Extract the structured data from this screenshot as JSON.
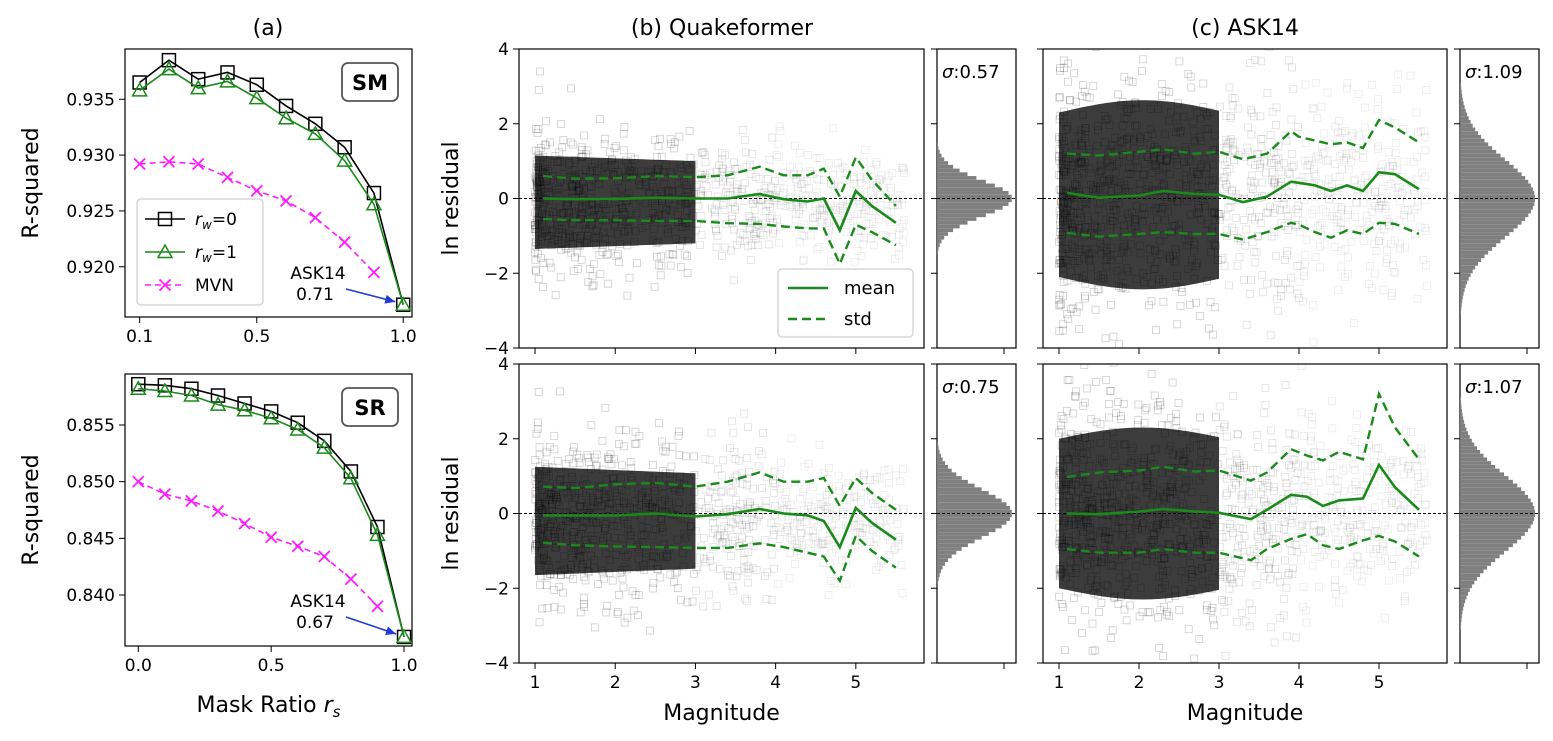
{
  "panel_titles": {
    "a": "(a)",
    "b": "(b) Quakeformer",
    "c": "(c) ASK14"
  },
  "colors": {
    "black_series": "#000000",
    "green_series": "#1a8a1a",
    "magenta_series": "#ff1aff",
    "residual_cloud": "#3c3c3c",
    "hist_fill": "#7f7f7f",
    "arrow": "#1f3bd6"
  },
  "chart_data": [
    {
      "id": "sm_r2",
      "type": "line",
      "badge": "SM",
      "ylabel": "R-squared",
      "xlabel": "",
      "xlim": [
        0.05,
        1.03
      ],
      "ylim": [
        0.9155,
        0.9395
      ],
      "xticks": [
        0.1,
        0.5,
        1.0
      ],
      "xtick_labels": [
        "0.1",
        "0.5",
        "1.0"
      ],
      "yticks": [
        0.92,
        0.925,
        0.93,
        0.935
      ],
      "ytick_labels": [
        "0.920",
        "0.925",
        "0.930",
        "0.935"
      ],
      "annotation": {
        "text": [
          "ASK14",
          "0.71"
        ],
        "x": 1.0,
        "y": 0.9166
      },
      "series": [
        {
          "name": "r_w=0",
          "label_sym": "r",
          "label_sub": "w",
          "label_tail": "=0",
          "marker": "square",
          "style": "solid",
          "x": [
            0.1,
            0.2,
            0.3,
            0.4,
            0.5,
            0.6,
            0.7,
            0.8,
            0.9,
            1.0
          ],
          "values": [
            0.9365,
            0.9385,
            0.9368,
            0.9374,
            0.9363,
            0.9344,
            0.9328,
            0.9307,
            0.9266,
            0.9166
          ]
        },
        {
          "name": "r_w=1",
          "label_sym": "r",
          "label_sub": "w",
          "label_tail": "=1",
          "marker": "triangle",
          "style": "solid",
          "x": [
            0.1,
            0.2,
            0.3,
            0.4,
            0.5,
            0.6,
            0.7,
            0.8,
            0.9,
            1.0
          ],
          "values": [
            0.9358,
            0.9377,
            0.936,
            0.9366,
            0.9351,
            0.9333,
            0.9319,
            0.9295,
            0.9256,
            0.9166
          ]
        },
        {
          "name": "MVN",
          "label_sym": "MVN",
          "label_sub": "",
          "label_tail": "",
          "marker": "x",
          "style": "dashed",
          "x": [
            0.1,
            0.2,
            0.3,
            0.4,
            0.5,
            0.6,
            0.7,
            0.8,
            0.9
          ],
          "values": [
            0.9292,
            0.9294,
            0.9292,
            0.928,
            0.9268,
            0.9259,
            0.9244,
            0.9222,
            0.9195
          ]
        }
      ]
    },
    {
      "id": "sr_r2",
      "type": "line",
      "badge": "SR",
      "ylabel": "R-squared",
      "xlabel": "Mask Ratio",
      "xlabel_sym": "r",
      "xlabel_sub": "s",
      "xlim": [
        -0.05,
        1.03
      ],
      "ylim": [
        0.8355,
        0.8595
      ],
      "xticks": [
        0.0,
        0.5,
        1.0
      ],
      "xtick_labels": [
        "0.0",
        "0.5",
        "1.0"
      ],
      "yticks": [
        0.84,
        0.845,
        0.85,
        0.855
      ],
      "ytick_labels": [
        "0.840",
        "0.845",
        "0.850",
        "0.855"
      ],
      "annotation": {
        "text": [
          "ASK14",
          "0.67"
        ],
        "x": 1.0,
        "y": 0.8363
      },
      "series": [
        {
          "name": "r_w=0",
          "marker": "square",
          "style": "solid",
          "x": [
            0.0,
            0.1,
            0.2,
            0.3,
            0.4,
            0.5,
            0.6,
            0.7,
            0.8,
            0.9,
            1.0
          ],
          "values": [
            0.8586,
            0.8585,
            0.8582,
            0.8576,
            0.8569,
            0.8562,
            0.8552,
            0.8536,
            0.8509,
            0.846,
            0.8363
          ]
        },
        {
          "name": "r_w=1",
          "marker": "triangle",
          "style": "solid",
          "x": [
            0.0,
            0.1,
            0.2,
            0.3,
            0.4,
            0.5,
            0.6,
            0.7,
            0.8,
            0.9,
            1.0
          ],
          "values": [
            0.8582,
            0.858,
            0.8576,
            0.8568,
            0.8563,
            0.8556,
            0.8546,
            0.853,
            0.8503,
            0.8453,
            0.8363
          ]
        },
        {
          "name": "MVN",
          "marker": "x",
          "style": "dashed",
          "x": [
            0.0,
            0.1,
            0.2,
            0.3,
            0.4,
            0.5,
            0.6,
            0.7,
            0.8,
            0.9
          ],
          "values": [
            0.85,
            0.8489,
            0.8483,
            0.8474,
            0.8463,
            0.8451,
            0.8443,
            0.8434,
            0.8414,
            0.839
          ]
        }
      ]
    },
    {
      "id": "qf_sm",
      "type": "scatter",
      "ylabel": "ln residual",
      "xlabel": "",
      "xlim": [
        0.8,
        5.85
      ],
      "ylim": [
        -4,
        4
      ],
      "xticks": [
        1,
        2,
        3,
        4,
        5
      ],
      "xtick_labels": [],
      "yticks": [
        -4,
        -2,
        0,
        2,
        4
      ],
      "ytick_labels": [
        "−4",
        "−2",
        "0",
        "2",
        "4"
      ],
      "density_spread": 1.25,
      "mean": {
        "x": [
          1.1,
          1.5,
          2.0,
          2.5,
          3.0,
          3.4,
          3.8,
          4.1,
          4.4,
          4.6,
          4.8,
          5.0,
          5.2,
          5.5
        ],
        "values": [
          0.0,
          -0.02,
          -0.01,
          0.02,
          0.0,
          0.0,
          0.12,
          -0.02,
          -0.08,
          0.0,
          -0.85,
          0.2,
          -0.2,
          -0.65
        ]
      },
      "std_upper": {
        "x": [
          1.1,
          1.5,
          2.0,
          2.5,
          3.0,
          3.4,
          3.8,
          4.1,
          4.4,
          4.6,
          4.8,
          5.0,
          5.2,
          5.5
        ],
        "values": [
          0.6,
          0.53,
          0.54,
          0.6,
          0.57,
          0.62,
          0.85,
          0.62,
          0.62,
          0.8,
          0.05,
          1.1,
          0.5,
          -0.2
        ]
      },
      "std_lower": {
        "x": [
          1.1,
          1.5,
          2.0,
          2.5,
          3.0,
          3.4,
          3.8,
          4.1,
          4.4,
          4.6,
          4.8,
          5.0,
          5.2,
          5.5
        ],
        "values": [
          -0.55,
          -0.58,
          -0.58,
          -0.6,
          -0.6,
          -0.66,
          -0.68,
          -0.75,
          -0.8,
          -0.8,
          -1.75,
          -0.7,
          -0.9,
          -1.25
        ]
      },
      "legend": {
        "mean": "mean",
        "std": "std"
      },
      "sigma": "0.57"
    },
    {
      "id": "ask_sm",
      "type": "scatter",
      "ylabel": "",
      "xlabel": "",
      "xlim": [
        0.8,
        5.85
      ],
      "ylim": [
        -4,
        4
      ],
      "xticks": [
        1,
        2,
        3,
        4,
        5
      ],
      "xtick_labels": [],
      "yticks": [
        -4,
        -2,
        0,
        2,
        4
      ],
      "ytick_labels": [],
      "density_spread": 2.2,
      "mean": {
        "x": [
          1.1,
          1.5,
          2.0,
          2.3,
          2.7,
          3.0,
          3.3,
          3.6,
          3.9,
          4.0,
          4.2,
          4.4,
          4.6,
          4.8,
          5.0,
          5.2,
          5.5
        ],
        "values": [
          0.15,
          0.02,
          0.08,
          0.2,
          0.12,
          0.1,
          -0.1,
          0.05,
          0.45,
          0.42,
          0.35,
          0.2,
          0.35,
          0.2,
          0.7,
          0.65,
          0.25
        ]
      },
      "std_upper": {
        "x": [
          1.1,
          1.5,
          2.0,
          2.3,
          2.7,
          3.0,
          3.3,
          3.6,
          3.9,
          4.0,
          4.2,
          4.4,
          4.6,
          4.8,
          5.0,
          5.2,
          5.5
        ],
        "values": [
          1.2,
          1.15,
          1.25,
          1.32,
          1.2,
          1.25,
          1.05,
          1.2,
          1.8,
          1.65,
          1.55,
          1.45,
          1.5,
          1.35,
          2.1,
          1.9,
          1.5
        ]
      },
      "std_lower": {
        "x": [
          1.1,
          1.5,
          2.0,
          2.3,
          2.7,
          3.0,
          3.3,
          3.6,
          3.9,
          4.0,
          4.2,
          4.4,
          4.6,
          4.8,
          5.0,
          5.2,
          5.5
        ],
        "values": [
          -0.92,
          -1.02,
          -0.95,
          -0.9,
          -0.95,
          -0.95,
          -1.1,
          -0.9,
          -0.65,
          -0.7,
          -0.9,
          -1.05,
          -0.85,
          -0.95,
          -0.65,
          -0.68,
          -0.95
        ]
      },
      "sigma": "1.09"
    },
    {
      "id": "qf_sr",
      "type": "scatter",
      "ylabel": "ln residual",
      "xlabel": "Magnitude",
      "xlim": [
        0.8,
        5.85
      ],
      "ylim": [
        -4,
        4
      ],
      "xticks": [
        1,
        2,
        3,
        4,
        5
      ],
      "xtick_labels": [
        "1",
        "2",
        "3",
        "4",
        "5"
      ],
      "yticks": [
        -4,
        -2,
        0,
        2,
        4
      ],
      "ytick_labels": [
        "−4",
        "−2",
        "0",
        "2",
        "4"
      ],
      "density_spread": 1.45,
      "mean": {
        "x": [
          1.1,
          1.5,
          2.0,
          2.5,
          3.0,
          3.4,
          3.8,
          4.1,
          4.4,
          4.6,
          4.8,
          5.0,
          5.2,
          5.5
        ],
        "values": [
          -0.05,
          -0.05,
          -0.05,
          0.0,
          -0.08,
          -0.02,
          0.12,
          0.0,
          -0.05,
          -0.2,
          -0.9,
          0.15,
          -0.25,
          -0.7
        ]
      },
      "std_upper": {
        "x": [
          1.1,
          1.5,
          2.0,
          2.5,
          3.0,
          3.4,
          3.8,
          4.1,
          4.4,
          4.6,
          4.8,
          5.0,
          5.2,
          5.5
        ],
        "values": [
          0.72,
          0.68,
          0.78,
          0.82,
          0.72,
          0.85,
          1.1,
          0.85,
          0.85,
          0.95,
          0.2,
          0.95,
          0.55,
          0.1
        ]
      },
      "std_lower": {
        "x": [
          1.1,
          1.5,
          2.0,
          2.5,
          3.0,
          3.4,
          3.8,
          4.1,
          4.4,
          4.6,
          4.8,
          5.0,
          5.2,
          5.5
        ],
        "values": [
          -0.78,
          -0.85,
          -0.88,
          -0.9,
          -0.92,
          -0.92,
          -0.8,
          -0.9,
          -1.05,
          -1.15,
          -1.8,
          -0.6,
          -1.0,
          -1.45
        ]
      },
      "sigma": "0.75"
    },
    {
      "id": "ask_sr",
      "type": "scatter",
      "ylabel": "",
      "xlabel": "Magnitude",
      "xlim": [
        0.8,
        5.85
      ],
      "ylim": [
        -4,
        4
      ],
      "xticks": [
        1,
        2,
        3,
        4,
        5
      ],
      "xtick_labels": [
        "1",
        "2",
        "3",
        "4",
        "5"
      ],
      "yticks": [
        -4,
        -2,
        0,
        2,
        4
      ],
      "ytick_labels": [],
      "density_spread": 2.0,
      "mean": {
        "x": [
          1.1,
          1.5,
          2.0,
          2.3,
          2.7,
          3.0,
          3.4,
          3.6,
          3.9,
          4.1,
          4.3,
          4.5,
          4.8,
          5.0,
          5.2,
          5.5
        ],
        "values": [
          0.0,
          -0.02,
          0.05,
          0.12,
          0.05,
          0.02,
          -0.15,
          0.1,
          0.5,
          0.45,
          0.2,
          0.35,
          0.4,
          1.3,
          0.7,
          0.1
        ]
      },
      "std_upper": {
        "x": [
          1.1,
          1.5,
          2.0,
          2.3,
          2.7,
          3.0,
          3.4,
          3.6,
          3.9,
          4.1,
          4.3,
          4.5,
          4.8,
          5.0,
          5.2,
          5.5
        ],
        "values": [
          0.98,
          1.1,
          1.15,
          1.25,
          1.12,
          1.15,
          0.88,
          1.1,
          1.72,
          1.55,
          1.42,
          1.65,
          1.45,
          3.2,
          2.3,
          1.45
        ]
      },
      "std_lower": {
        "x": [
          1.1,
          1.5,
          2.0,
          2.3,
          2.7,
          3.0,
          3.4,
          3.6,
          3.9,
          4.1,
          4.3,
          4.5,
          4.8,
          5.0,
          5.2,
          5.5
        ],
        "values": [
          -0.95,
          -1.05,
          -1.05,
          -0.95,
          -1.05,
          -1.05,
          -1.25,
          -0.95,
          -0.68,
          -0.55,
          -0.85,
          -0.95,
          -0.72,
          -0.6,
          -0.75,
          -1.15
        ]
      },
      "sigma": "1.07"
    }
  ]
}
